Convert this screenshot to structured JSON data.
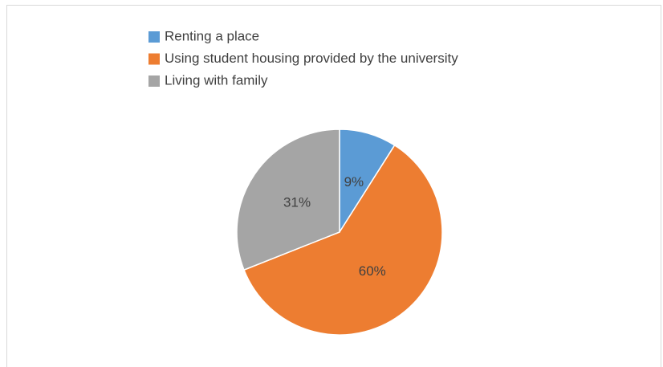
{
  "chart_data": {
    "type": "pie",
    "categories": [
      "Renting a place",
      "Using student housing provided by the university",
      "Living with family"
    ],
    "values": [
      9,
      60,
      31
    ],
    "value_labels": [
      "9%",
      "60%",
      "31%"
    ],
    "colors": [
      "#5b9bd5",
      "#ed7d31",
      "#a5a5a5"
    ]
  }
}
